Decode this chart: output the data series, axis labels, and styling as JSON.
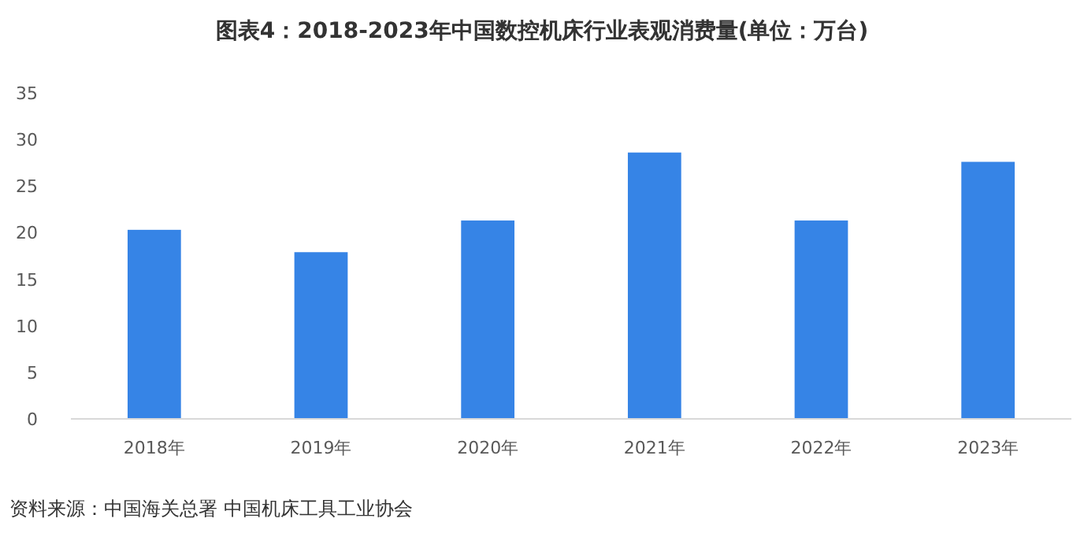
{
  "chart_data": {
    "type": "bar",
    "title": "图表4：2018-2023年中国数控机床行业表观消费量(单位：万台)",
    "categories": [
      "2018年",
      "2019年",
      "2020年",
      "2021年",
      "2022年",
      "2023年"
    ],
    "values": [
      20.3,
      17.9,
      21.3,
      28.6,
      21.3,
      27.6
    ],
    "color": "#3684e6",
    "ylim": [
      0,
      35
    ],
    "yticks": [
      0,
      5,
      10,
      15,
      20,
      25,
      30,
      35
    ],
    "grid": false,
    "annotations": [
      "资料来源：中国海关总署 中国机床工具工业协会"
    ]
  }
}
